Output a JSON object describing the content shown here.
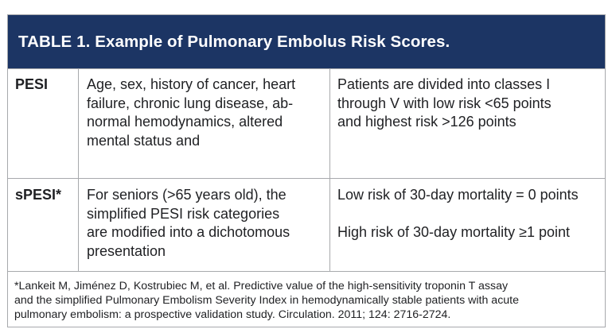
{
  "table": {
    "title": "TABLE 1. Example of Pulmonary Embolus Risk Scores.",
    "rows": [
      {
        "score": "PESI",
        "criteria_lines": [
          "Age, sex, history of cancer, heart",
          "failure, chronic lung disease, ab-",
          "normal hemodynamics, altered",
          "mental status and"
        ],
        "risk_lines": [
          "Patients are divided into classes I",
          "through V with low risk <65 points",
          "and highest risk >126 points"
        ]
      },
      {
        "score": "sPESI*",
        "criteria_lines": [
          "For seniors (>65 years old), the",
          "simplified PESI risk categories",
          "are modified into a dichotomous",
          "presentation"
        ],
        "risk_low": "Low risk of 30-day mortality = 0 points",
        "risk_high": "High risk of 30-day mortality ≥1 point"
      }
    ],
    "footnote_lines": [
      "*Lankeit M, Jiménez D, Kostrubiec M, et al. Predictive value of the high-sensitivity troponin T assay",
      "and the simplified Pulmonary Embolism Severity Index in hemodynamically stable patients with acute",
      "pulmonary embolism: a prospective validation study. Circulation. 2011; 124: 2716-2724."
    ]
  },
  "colors": {
    "header_background": "#1c3564",
    "header_text": "#ffffff",
    "border": "#a7a9ac",
    "body_text": "#1f2023"
  }
}
